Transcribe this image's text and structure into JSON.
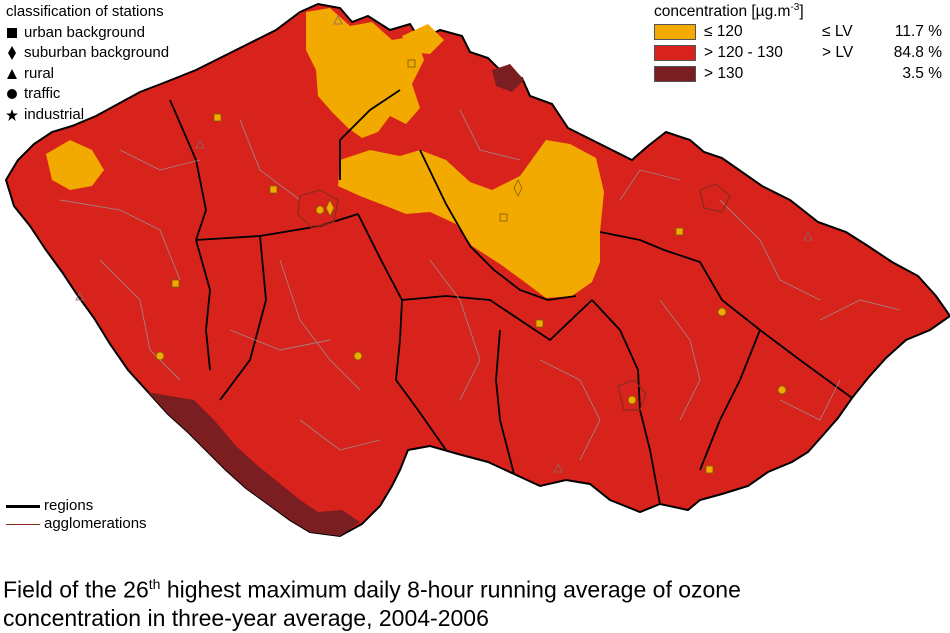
{
  "stations_legend": {
    "title": "classification of stations",
    "items": [
      {
        "label": "urban background",
        "icon": "square-icon"
      },
      {
        "label": "suburban background",
        "icon": "diamond-icon"
      },
      {
        "label": "rural",
        "icon": "triangle-icon"
      },
      {
        "label": "traffic",
        "icon": "circle-icon"
      },
      {
        "label": "industrial",
        "icon": "star-icon"
      }
    ]
  },
  "concentration_legend": {
    "title_main": "concentration [µg.m",
    "title_sup": "-3",
    "title_end": "]",
    "classes": [
      {
        "range": "≤ 120",
        "lv": "≤ LV",
        "percent": "11.7 %",
        "color": "#f2a900"
      },
      {
        "range": "> 120 - 130",
        "lv": "> LV",
        "percent": "84.8 %",
        "color": "#d8231c"
      },
      {
        "range": "> 130",
        "lv": "",
        "percent": "3.5 %",
        "color": "#7a1e22"
      }
    ]
  },
  "line_legend": {
    "regions": "regions",
    "agglomerations": "agglomerations",
    "regions_color": "#000000",
    "agglomerations_color": "#8b2a1e"
  },
  "caption": {
    "part1": "Field of the 26",
    "sup": "th",
    "part2": " highest maximum daily 8-hour running average of ozone",
    "line2": "concentration in three-year average, 2004-2006"
  }
}
